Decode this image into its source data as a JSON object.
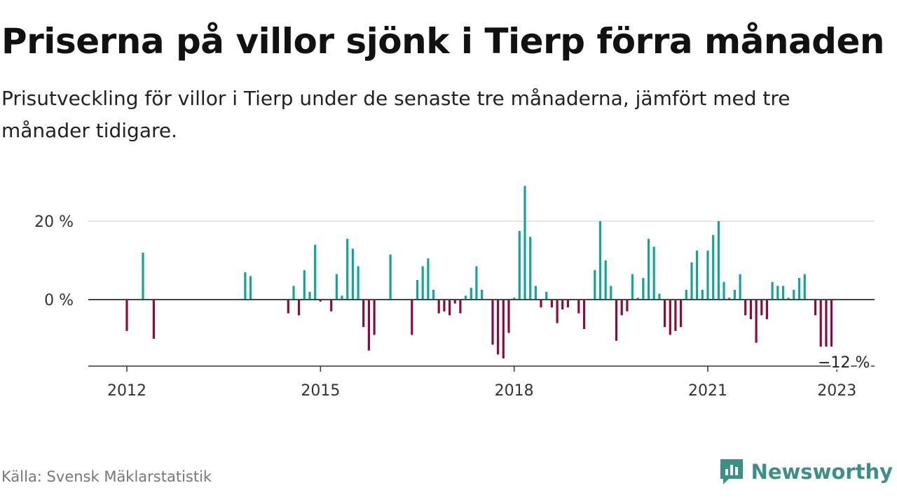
{
  "title": "Priserna på villor sjönk i Tierp förra månaden",
  "subtitle": "Prisutveckling för villor i Tierp under de senaste tre månaderna, jämfört med tre månader tidigare.",
  "source": "Källa: Svensk Mäklarstatistik",
  "brand": "Newsworthy",
  "colors": {
    "positive": "#13a59a",
    "negative": "#8c0b3e",
    "brand": "#3a8f86",
    "grid": "#dddddd",
    "zero": "#444444"
  },
  "chart_data": {
    "type": "bar",
    "y_ticks": [
      {
        "value": 0,
        "label": "0 %"
      },
      {
        "value": 20,
        "label": "20 %"
      }
    ],
    "x_ticks": [
      {
        "date": "2012-01",
        "label": "2012"
      },
      {
        "date": "2015-01",
        "label": "2015"
      },
      {
        "date": "2018-01",
        "label": "2018"
      },
      {
        "date": "2021-01",
        "label": "2021"
      },
      {
        "date": "2023-01",
        "label": "2023"
      }
    ],
    "ylim": [
      -17,
      30
    ],
    "xlim": [
      "2011-07",
      "2023-07"
    ],
    "annotation": {
      "date": "2023-01",
      "value": -12,
      "label": "−12 %"
    },
    "months": [
      {
        "date": "2012-01",
        "value": -8
      },
      {
        "date": "2012-04",
        "value": 12
      },
      {
        "date": "2012-06",
        "value": -10
      },
      {
        "date": "2013-11",
        "value": 7
      },
      {
        "date": "2013-12",
        "value": 6
      },
      {
        "date": "2014-07",
        "value": -3.5
      },
      {
        "date": "2014-08",
        "value": 3.5
      },
      {
        "date": "2014-09",
        "value": -4
      },
      {
        "date": "2014-10",
        "value": 7.5
      },
      {
        "date": "2014-11",
        "value": 2
      },
      {
        "date": "2014-12",
        "value": 14
      },
      {
        "date": "2015-01",
        "value": -0.5
      },
      {
        "date": "2015-03",
        "value": -3
      },
      {
        "date": "2015-04",
        "value": 6.5
      },
      {
        "date": "2015-05",
        "value": 1
      },
      {
        "date": "2015-06",
        "value": 15.5
      },
      {
        "date": "2015-07",
        "value": 13
      },
      {
        "date": "2015-08",
        "value": 8.5
      },
      {
        "date": "2015-09",
        "value": -7
      },
      {
        "date": "2015-10",
        "value": -13
      },
      {
        "date": "2015-11",
        "value": -9
      },
      {
        "date": "2016-02",
        "value": 11.5
      },
      {
        "date": "2016-06",
        "value": -9
      },
      {
        "date": "2016-07",
        "value": 5
      },
      {
        "date": "2016-08",
        "value": 8.5
      },
      {
        "date": "2016-09",
        "value": 10.5
      },
      {
        "date": "2016-10",
        "value": 2.5
      },
      {
        "date": "2016-11",
        "value": -3.5
      },
      {
        "date": "2016-12",
        "value": -3
      },
      {
        "date": "2017-01",
        "value": -4
      },
      {
        "date": "2017-02",
        "value": -1
      },
      {
        "date": "2017-03",
        "value": -3.5
      },
      {
        "date": "2017-04",
        "value": 1
      },
      {
        "date": "2017-05",
        "value": 3
      },
      {
        "date": "2017-06",
        "value": 8.5
      },
      {
        "date": "2017-07",
        "value": 2.5
      },
      {
        "date": "2017-09",
        "value": -11.5
      },
      {
        "date": "2017-10",
        "value": -14
      },
      {
        "date": "2017-11",
        "value": -15
      },
      {
        "date": "2017-12",
        "value": -8.5
      },
      {
        "date": "2018-01",
        "value": 0.5
      },
      {
        "date": "2018-02",
        "value": 17.5
      },
      {
        "date": "2018-03",
        "value": 29
      },
      {
        "date": "2018-04",
        "value": 16
      },
      {
        "date": "2018-05",
        "value": 3.5
      },
      {
        "date": "2018-06",
        "value": -2
      },
      {
        "date": "2018-07",
        "value": 2
      },
      {
        "date": "2018-08",
        "value": -2
      },
      {
        "date": "2018-09",
        "value": -6
      },
      {
        "date": "2018-10",
        "value": -2.5
      },
      {
        "date": "2018-11",
        "value": -2
      },
      {
        "date": "2019-01",
        "value": -3.5
      },
      {
        "date": "2019-02",
        "value": -7.5
      },
      {
        "date": "2019-04",
        "value": 7.5
      },
      {
        "date": "2019-05",
        "value": 20
      },
      {
        "date": "2019-06",
        "value": 10
      },
      {
        "date": "2019-07",
        "value": 3.5
      },
      {
        "date": "2019-08",
        "value": -10.5
      },
      {
        "date": "2019-09",
        "value": -4
      },
      {
        "date": "2019-10",
        "value": -3
      },
      {
        "date": "2019-11",
        "value": 6.5
      },
      {
        "date": "2019-12",
        "value": 0.5
      },
      {
        "date": "2020-01",
        "value": 5.5
      },
      {
        "date": "2020-02",
        "value": 15.5
      },
      {
        "date": "2020-03",
        "value": 13.5
      },
      {
        "date": "2020-04",
        "value": 1.5
      },
      {
        "date": "2020-05",
        "value": -7
      },
      {
        "date": "2020-06",
        "value": -9
      },
      {
        "date": "2020-07",
        "value": -8
      },
      {
        "date": "2020-08",
        "value": -7
      },
      {
        "date": "2020-09",
        "value": 2.5
      },
      {
        "date": "2020-10",
        "value": 9.5
      },
      {
        "date": "2020-11",
        "value": 12.5
      },
      {
        "date": "2020-12",
        "value": 2.5
      },
      {
        "date": "2021-01",
        "value": 12.5
      },
      {
        "date": "2021-02",
        "value": 16.5
      },
      {
        "date": "2021-03",
        "value": 20
      },
      {
        "date": "2021-04",
        "value": 4.5
      },
      {
        "date": "2021-05",
        "value": 0.5
      },
      {
        "date": "2021-06",
        "value": 2.5
      },
      {
        "date": "2021-07",
        "value": 6.5
      },
      {
        "date": "2021-08",
        "value": -4
      },
      {
        "date": "2021-09",
        "value": -5
      },
      {
        "date": "2021-10",
        "value": -11
      },
      {
        "date": "2021-11",
        "value": -4
      },
      {
        "date": "2021-12",
        "value": -5
      },
      {
        "date": "2022-01",
        "value": 4.5
      },
      {
        "date": "2022-02",
        "value": 3.5
      },
      {
        "date": "2022-03",
        "value": 3.5
      },
      {
        "date": "2022-04",
        "value": 0.5
      },
      {
        "date": "2022-05",
        "value": 2.5
      },
      {
        "date": "2022-06",
        "value": 5.5
      },
      {
        "date": "2022-07",
        "value": 6.5
      },
      {
        "date": "2022-09",
        "value": -4
      },
      {
        "date": "2022-10",
        "value": -12
      },
      {
        "date": "2022-11",
        "value": -12
      },
      {
        "date": "2022-12",
        "value": -12
      }
    ]
  }
}
